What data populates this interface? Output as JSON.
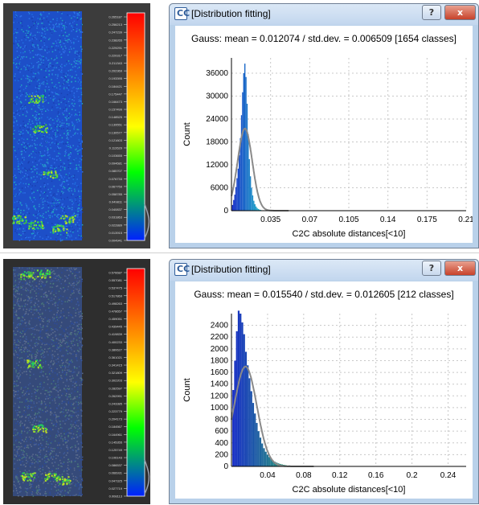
{
  "panels": [
    {
      "legend_ticks": [
        "0.265187",
        "0.256213",
        "0.247239",
        "0.238265",
        "0.229291",
        "0.220317",
        "0.211343",
        "0.202369",
        "0.193395",
        "0.184421",
        "0.175447",
        "0.166473",
        "0.157499",
        "0.148525",
        "0.139551",
        "0.130577",
        "0.121603",
        "0.112629",
        "0.103655",
        "0.094681",
        "0.085707",
        "0.076733",
        "0.067759",
        "0.058785",
        "0.049811",
        "0.040837",
        "0.031863",
        "0.022889",
        "0.013915",
        "0.004941"
      ]
    },
    {
      "legend_ticks": [
        "0.576687",
        "0.557081",
        "0.537475",
        "0.517869",
        "0.498263",
        "0.478657",
        "0.459051",
        "0.439445",
        "0.419839",
        "0.400233",
        "0.380627",
        "0.361021",
        "0.341415",
        "0.321809",
        "0.302203",
        "0.282597",
        "0.262991",
        "0.243385",
        "0.223779",
        "0.204173",
        "0.184567",
        "0.164961",
        "0.145355",
        "0.125749",
        "0.106143",
        "0.086537",
        "0.066931",
        "0.047325",
        "0.027719",
        "0.008113"
      ]
    }
  ],
  "windows": [
    {
      "title": "[Distribution fitting]",
      "help_label": "?",
      "close_label": "x",
      "app_icon_label": "CC",
      "gauss_text": "Gauss: mean = 0.012074 / std.dev. = 0.006509 [1654 classes]",
      "colors": {
        "bars_low": "#1428c8",
        "bars_high": "#20b8c8",
        "fit_curve": "#8a8a8a",
        "grid": "#c8c8c8"
      },
      "chart_data": {
        "type": "bar",
        "xlabel": "C2C absolute distances[<10]",
        "ylabel": "Count",
        "xlim": [
          0,
          0.21
        ],
        "ylim": [
          0,
          40000
        ],
        "x_ticks": [
          "0.035",
          "0.07",
          "0.105",
          "0.14",
          "0.175",
          "0.21"
        ],
        "y_ticks": [
          "0",
          "6000",
          "12000",
          "18000",
          "24000",
          "30000",
          "36000"
        ],
        "bins": [
          {
            "x": 0.001,
            "y": 1500
          },
          {
            "x": 0.002,
            "y": 2800
          },
          {
            "x": 0.003,
            "y": 4200
          },
          {
            "x": 0.004,
            "y": 6200
          },
          {
            "x": 0.005,
            "y": 8500
          },
          {
            "x": 0.006,
            "y": 11000
          },
          {
            "x": 0.007,
            "y": 14500
          },
          {
            "x": 0.008,
            "y": 19000
          },
          {
            "x": 0.009,
            "y": 25000
          },
          {
            "x": 0.01,
            "y": 31000
          },
          {
            "x": 0.011,
            "y": 36000
          },
          {
            "x": 0.012,
            "y": 38500
          },
          {
            "x": 0.013,
            "y": 35000
          },
          {
            "x": 0.014,
            "y": 28000
          },
          {
            "x": 0.015,
            "y": 20000
          },
          {
            "x": 0.016,
            "y": 13500
          },
          {
            "x": 0.017,
            "y": 9000
          },
          {
            "x": 0.018,
            "y": 6000
          },
          {
            "x": 0.019,
            "y": 4000
          },
          {
            "x": 0.02,
            "y": 2600
          },
          {
            "x": 0.021,
            "y": 1700
          },
          {
            "x": 0.022,
            "y": 1100
          },
          {
            "x": 0.023,
            "y": 700
          },
          {
            "x": 0.024,
            "y": 450
          },
          {
            "x": 0.025,
            "y": 300
          },
          {
            "x": 0.026,
            "y": 200
          },
          {
            "x": 0.027,
            "y": 120
          }
        ],
        "fit": {
          "mean": 0.012074,
          "std": 0.006509,
          "peak": 21500
        }
      }
    },
    {
      "title": "[Distribution fitting]",
      "help_label": "?",
      "close_label": "x",
      "app_icon_label": "CC",
      "gauss_text": "Gauss: mean = 0.015540 / std.dev. = 0.012605 [212 classes]",
      "colors": {
        "bars_low": "#1428c8",
        "bars_high": "#30c060",
        "fit_curve": "#8a8a8a",
        "grid": "#c8c8c8"
      },
      "chart_data": {
        "type": "bar",
        "xlabel": "C2C absolute distances[<10]",
        "ylabel": "Count",
        "xlim": [
          0,
          0.26
        ],
        "ylim": [
          0,
          2600
        ],
        "x_ticks": [
          "0.04",
          "0.08",
          "0.12",
          "0.16",
          "0.2",
          "0.24"
        ],
        "y_ticks": [
          "0",
          "200",
          "400",
          "600",
          "800",
          "1000",
          "1200",
          "1400",
          "1600",
          "1800",
          "2000",
          "2200",
          "2400"
        ],
        "bins": [
          {
            "x": 0.002,
            "y": 1300
          },
          {
            "x": 0.004,
            "y": 1800
          },
          {
            "x": 0.006,
            "y": 2300
          },
          {
            "x": 0.008,
            "y": 2650
          },
          {
            "x": 0.01,
            "y": 2600
          },
          {
            "x": 0.012,
            "y": 2450
          },
          {
            "x": 0.014,
            "y": 2250
          },
          {
            "x": 0.016,
            "y": 1950
          },
          {
            "x": 0.018,
            "y": 1720
          },
          {
            "x": 0.02,
            "y": 1500
          },
          {
            "x": 0.022,
            "y": 1280
          },
          {
            "x": 0.024,
            "y": 1080
          },
          {
            "x": 0.026,
            "y": 900
          },
          {
            "x": 0.028,
            "y": 740
          },
          {
            "x": 0.03,
            "y": 600
          },
          {
            "x": 0.032,
            "y": 490
          },
          {
            "x": 0.034,
            "y": 390
          },
          {
            "x": 0.036,
            "y": 310
          },
          {
            "x": 0.038,
            "y": 250
          },
          {
            "x": 0.04,
            "y": 200
          },
          {
            "x": 0.042,
            "y": 160
          },
          {
            "x": 0.044,
            "y": 130
          },
          {
            "x": 0.046,
            "y": 100
          },
          {
            "x": 0.048,
            "y": 80
          },
          {
            "x": 0.05,
            "y": 65
          },
          {
            "x": 0.052,
            "y": 52
          },
          {
            "x": 0.054,
            "y": 42
          },
          {
            "x": 0.056,
            "y": 34
          },
          {
            "x": 0.058,
            "y": 27
          },
          {
            "x": 0.06,
            "y": 22
          },
          {
            "x": 0.064,
            "y": 16
          },
          {
            "x": 0.068,
            "y": 12
          },
          {
            "x": 0.072,
            "y": 8
          },
          {
            "x": 0.076,
            "y": 5
          },
          {
            "x": 0.08,
            "y": 3
          }
        ],
        "fit": {
          "mean": 0.01554,
          "std": 0.012605,
          "peak": 1700
        }
      }
    }
  ]
}
